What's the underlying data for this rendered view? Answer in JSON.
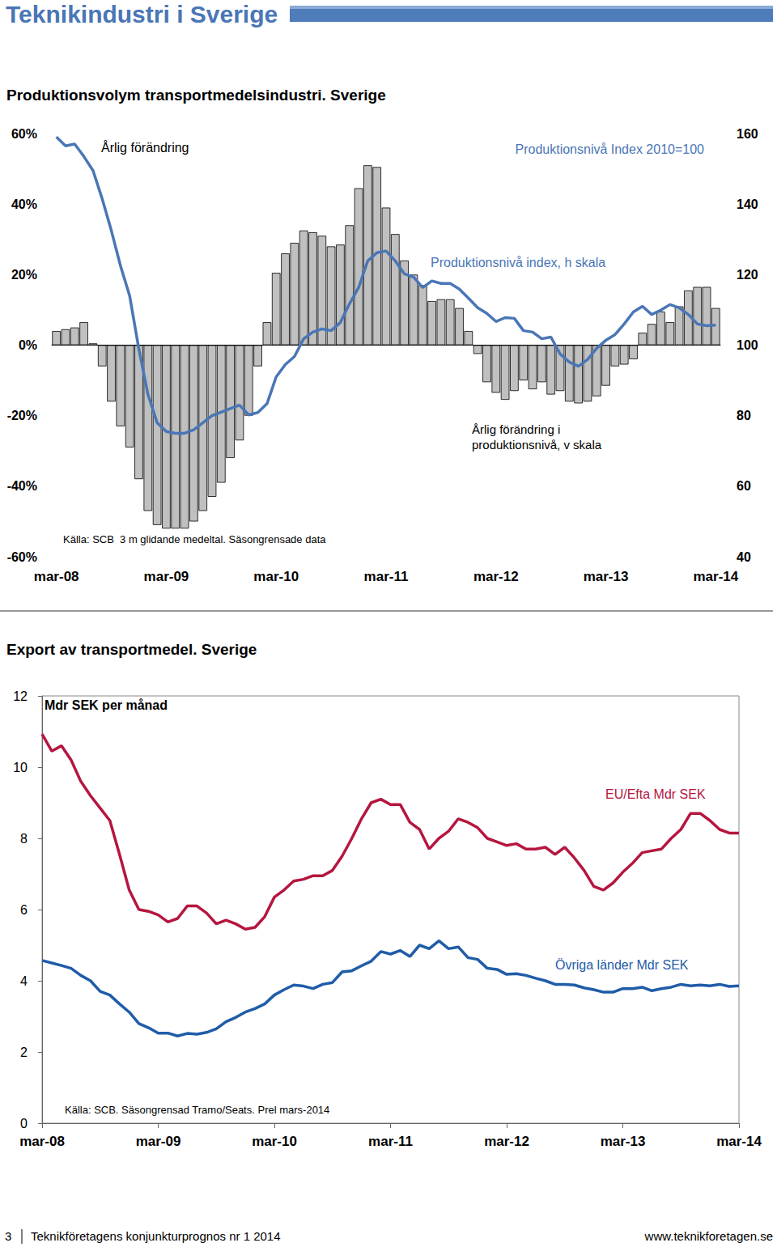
{
  "header": {
    "title": "Teknikindustri i Sverige"
  },
  "chart_data": [
    {
      "type": "bar",
      "title": "Produktionsvolym transportmedelsindustri. Sverige",
      "ylabel": "Årlig förändring",
      "y2label": "Produktionsnivå Index 2010=100",
      "note": "Källa: SCB  3 m glidande medeltal. Säsongrensade data",
      "categories": [
        "mar-08",
        null,
        null,
        null,
        null,
        null,
        null,
        null,
        null,
        null,
        null,
        null,
        "mar-09",
        null,
        null,
        null,
        null,
        null,
        null,
        null,
        null,
        null,
        null,
        null,
        "mar-10",
        null,
        null,
        null,
        null,
        null,
        null,
        null,
        null,
        null,
        null,
        null,
        "mar-11",
        null,
        null,
        null,
        null,
        null,
        null,
        null,
        null,
        null,
        null,
        null,
        "mar-12",
        null,
        null,
        null,
        null,
        null,
        null,
        null,
        null,
        null,
        null,
        null,
        "mar-13",
        null,
        null,
        null,
        null,
        null,
        null,
        null,
        null,
        null,
        null,
        null,
        "mar-14"
      ],
      "series": [
        {
          "name": "Årlig förändring i produktionsnivå, v skala",
          "type": "bar",
          "color": "#c0c0c0",
          "values": [
            4,
            4.5,
            5,
            6.5,
            0.5,
            -6,
            -16,
            -23,
            -29,
            -38,
            -47,
            -51,
            -52,
            -52,
            -52,
            -50,
            -47,
            -43,
            -39,
            -32,
            -27,
            -20,
            -6,
            6.5,
            20.5,
            26,
            29,
            32.5,
            32,
            31,
            28,
            28.5,
            34,
            44.5,
            51,
            50.5,
            39,
            31.5,
            24,
            20,
            17,
            12.5,
            13,
            13,
            10.5,
            4,
            -2.5,
            -10.5,
            -13.5,
            -15.5,
            -13,
            -10,
            -12.5,
            -10.5,
            -14,
            -13,
            -16,
            -16.5,
            -16,
            -14.5,
            -11.5,
            -6,
            -5.5,
            -4,
            3.5,
            6,
            9.5,
            6.5,
            11,
            15.5,
            16.5,
            16.5,
            10.5
          ]
        },
        {
          "name": "Produktionsnivå index, h skala",
          "type": "line",
          "color": "#4a76b6",
          "axis": "y2",
          "values": [
            159,
            156.5,
            157,
            153.5,
            149.5,
            141.5,
            132.5,
            122.5,
            114,
            99,
            86,
            78,
            75.5,
            75,
            75,
            76,
            78,
            80,
            81,
            82,
            83,
            80.2,
            80.9,
            83.4,
            91,
            94.5,
            96.8,
            101.8,
            103.7,
            104.6,
            104.1,
            106.4,
            111.7,
            116.3,
            123.9,
            126.2,
            126.7,
            123.9,
            120.2,
            119.3,
            116.3,
            118.2,
            117.5,
            117.5,
            115.9,
            113.3,
            110.6,
            109,
            106.7,
            107.8,
            107.6,
            104.1,
            103.7,
            101.8,
            102.3,
            97.5,
            95.2,
            94,
            95.9,
            99.1,
            101.4,
            103,
            106,
            109.4,
            111,
            108.7,
            109.9,
            111.5,
            110.6,
            108.7,
            106,
            105.5,
            105.7
          ]
        }
      ],
      "ylim": [
        -60,
        60
      ],
      "yticks": [
        {
          "value": -60,
          "label": "-60%"
        },
        {
          "value": -40,
          "label": "-40%"
        },
        {
          "value": -20,
          "label": "-20%"
        },
        {
          "value": 0,
          "label": "0%"
        },
        {
          "value": 20,
          "label": "20%"
        },
        {
          "value": 40,
          "label": "40%"
        },
        {
          "value": 60,
          "label": "60%"
        }
      ],
      "y2lim": [
        40,
        160
      ],
      "y2ticks": [
        40,
        60,
        80,
        100,
        120,
        140,
        160
      ],
      "grid": false
    },
    {
      "type": "line",
      "title": "Export av transportmedel. Sverige",
      "ylabel": "Mdr SEK per månad",
      "note": "Källa: SCB. Säsongrensad Tramo/Seats. Prel mars-2014",
      "categories": [
        "mar-08",
        null,
        null,
        null,
        null,
        null,
        null,
        null,
        null,
        null,
        null,
        null,
        "mar-09",
        null,
        null,
        null,
        null,
        null,
        null,
        null,
        null,
        null,
        null,
        null,
        "mar-10",
        null,
        null,
        null,
        null,
        null,
        null,
        null,
        null,
        null,
        null,
        null,
        "mar-11",
        null,
        null,
        null,
        null,
        null,
        null,
        null,
        null,
        null,
        null,
        null,
        "mar-12",
        null,
        null,
        null,
        null,
        null,
        null,
        null,
        null,
        null,
        null,
        null,
        "mar-13",
        null,
        null,
        null,
        null,
        null,
        null,
        null,
        null,
        null,
        null,
        null,
        "mar-14"
      ],
      "series": [
        {
          "name": "EU/Efta Mdr SEK",
          "color": "#b5163f",
          "values": [
            10.93,
            10.45,
            10.6,
            10.2,
            9.6,
            9.2,
            8.85,
            8.5,
            7.55,
            6.55,
            6.0,
            5.95,
            5.85,
            5.65,
            5.75,
            6.1,
            6.1,
            5.9,
            5.6,
            5.7,
            5.6,
            5.45,
            5.5,
            5.8,
            6.35,
            6.55,
            6.8,
            6.85,
            6.95,
            6.95,
            7.1,
            7.5,
            8.0,
            8.55,
            9.0,
            9.1,
            8.95,
            8.95,
            8.45,
            8.25,
            7.7,
            8.0,
            8.2,
            8.55,
            8.45,
            8.3,
            8.0,
            7.9,
            7.8,
            7.85,
            7.7,
            7.7,
            7.75,
            7.55,
            7.75,
            7.45,
            7.1,
            6.65,
            6.55,
            6.75,
            7.05,
            7.3,
            7.6,
            7.65,
            7.7,
            8.0,
            8.25,
            8.7,
            8.7,
            8.5,
            8.25,
            8.15,
            8.15
          ]
        },
        {
          "name": "Övriga länder Mdr SEK",
          "color": "#1f5ca8",
          "values": [
            4.57,
            4.5,
            4.43,
            4.35,
            4.15,
            4.0,
            3.7,
            3.6,
            3.35,
            3.12,
            2.8,
            2.68,
            2.53,
            2.53,
            2.45,
            2.52,
            2.5,
            2.55,
            2.65,
            2.85,
            2.97,
            3.12,
            3.22,
            3.35,
            3.6,
            3.75,
            3.88,
            3.85,
            3.78,
            3.9,
            3.95,
            4.25,
            4.28,
            4.42,
            4.55,
            4.82,
            4.75,
            4.85,
            4.68,
            5.0,
            4.9,
            5.12,
            4.9,
            4.95,
            4.65,
            4.6,
            4.35,
            4.32,
            4.18,
            4.2,
            4.15,
            4.07,
            4.0,
            3.9,
            3.9,
            3.88,
            3.8,
            3.75,
            3.68,
            3.68,
            3.78,
            3.78,
            3.82,
            3.72,
            3.78,
            3.82,
            3.9,
            3.86,
            3.88,
            3.86,
            3.9,
            3.84,
            3.86
          ]
        }
      ],
      "ylim": [
        0,
        12
      ],
      "yticks": [
        0,
        2,
        4,
        6,
        8,
        10,
        12
      ],
      "grid": false
    }
  ],
  "footer": {
    "page": "3",
    "publication": "Teknikföretagens konjunkturprognos nr 1 2014",
    "url": "www.teknikforetagen.se"
  }
}
